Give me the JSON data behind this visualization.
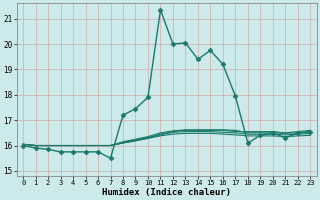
{
  "title": "",
  "xlabel": "Humidex (Indice chaleur)",
  "ylabel": "",
  "bg_color": "#cceaea",
  "grid_color": "#d4a8a8",
  "line_color": "#1a7a6a",
  "xlim": [
    -0.5,
    23.5
  ],
  "ylim": [
    14.8,
    21.6
  ],
  "yticks": [
    15,
    16,
    17,
    18,
    19,
    20,
    21
  ],
  "xticks": [
    0,
    1,
    2,
    3,
    4,
    5,
    6,
    7,
    8,
    9,
    10,
    11,
    12,
    13,
    14,
    15,
    16,
    17,
    18,
    19,
    20,
    21,
    22,
    23
  ],
  "series": [
    {
      "x": [
        0,
        1,
        2,
        3,
        4,
        5,
        6,
        7,
        8,
        9,
        10,
        11,
        12,
        13,
        14,
        15,
        16,
        17,
        18,
        19,
        20,
        21,
        22,
        23
      ],
      "y": [
        16.0,
        15.9,
        15.85,
        15.75,
        15.75,
        15.75,
        15.75,
        15.5,
        17.2,
        17.45,
        17.9,
        21.35,
        20.0,
        20.05,
        19.4,
        19.75,
        19.2,
        17.95,
        16.1,
        16.4,
        16.5,
        16.3,
        16.5,
        16.55
      ],
      "marker": "D",
      "markersize": 2.5,
      "linewidth": 1.0
    },
    {
      "x": [
        0,
        1,
        2,
        3,
        4,
        5,
        6,
        7,
        8,
        9,
        10,
        11,
        12,
        13,
        14,
        15,
        16,
        17,
        18,
        19,
        20,
        21,
        22,
        23
      ],
      "y": [
        16.05,
        16.0,
        16.0,
        16.0,
        16.0,
        16.0,
        16.0,
        16.0,
        16.1,
        16.2,
        16.3,
        16.45,
        16.55,
        16.6,
        16.6,
        16.6,
        16.6,
        16.55,
        16.55,
        16.55,
        16.55,
        16.5,
        16.55,
        16.6
      ],
      "marker": null,
      "markersize": 0,
      "linewidth": 0.8
    },
    {
      "x": [
        0,
        1,
        2,
        3,
        4,
        5,
        6,
        7,
        8,
        9,
        10,
        11,
        12,
        13,
        14,
        15,
        16,
        17,
        18,
        19,
        20,
        21,
        22,
        23
      ],
      "y": [
        16.05,
        16.0,
        16.0,
        16.0,
        16.0,
        16.0,
        16.0,
        16.0,
        16.15,
        16.25,
        16.35,
        16.5,
        16.58,
        16.62,
        16.62,
        16.62,
        16.62,
        16.6,
        16.5,
        16.5,
        16.5,
        16.48,
        16.5,
        16.52
      ],
      "marker": null,
      "markersize": 0,
      "linewidth": 0.8
    },
    {
      "x": [
        0,
        1,
        2,
        3,
        4,
        5,
        6,
        7,
        8,
        9,
        10,
        11,
        12,
        13,
        14,
        15,
        16,
        17,
        18,
        19,
        20,
        21,
        22,
        23
      ],
      "y": [
        16.05,
        16.0,
        16.0,
        16.0,
        16.0,
        16.0,
        16.0,
        16.0,
        16.12,
        16.22,
        16.32,
        16.42,
        16.52,
        16.55,
        16.55,
        16.55,
        16.52,
        16.5,
        16.45,
        16.45,
        16.45,
        16.42,
        16.45,
        16.47
      ],
      "marker": null,
      "markersize": 0,
      "linewidth": 0.8
    },
    {
      "x": [
        0,
        1,
        2,
        3,
        4,
        5,
        6,
        7,
        8,
        9,
        10,
        11,
        12,
        13,
        14,
        15,
        16,
        17,
        18,
        19,
        20,
        21,
        22,
        23
      ],
      "y": [
        16.05,
        16.0,
        16.0,
        16.0,
        16.0,
        16.0,
        16.0,
        16.0,
        16.1,
        16.18,
        16.28,
        16.38,
        16.45,
        16.48,
        16.48,
        16.48,
        16.45,
        16.42,
        16.38,
        16.38,
        16.38,
        16.35,
        16.38,
        16.4
      ],
      "marker": null,
      "markersize": 0,
      "linewidth": 0.8
    }
  ]
}
